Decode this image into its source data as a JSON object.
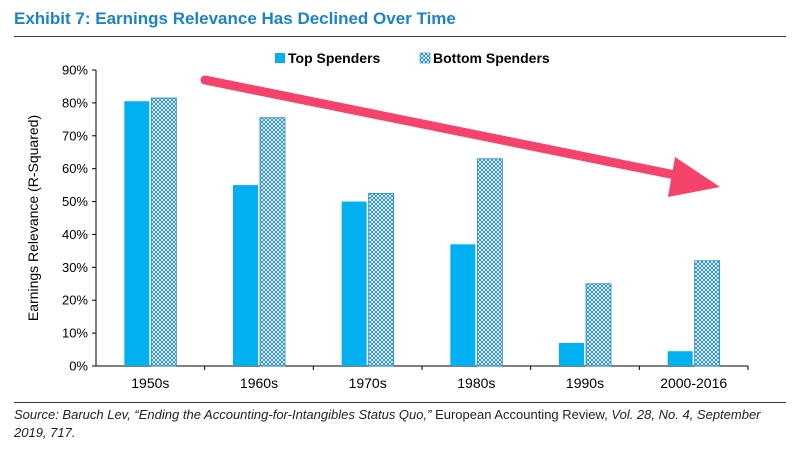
{
  "title": "Exhibit 7: Earnings Relevance Has Declined Over Time",
  "source": {
    "part1": "Source: Baruch Lev, “Ending the Accounting-for-Intangibles Status Quo,”",
    "part2": " European Accounting Review, ",
    "part3": "Vol. 28, No. 4, September 2019, 717."
  },
  "colors": {
    "title": "#1b84c6",
    "top_spenders": "#00b0f0",
    "bottom_spenders_pattern": "#1f87c8",
    "arrow": "#f5436c"
  },
  "chart_data": {
    "type": "bar",
    "ylabel": "Earnings Relevance (R-Squared)",
    "xlabel": "",
    "ylim": [
      0,
      90
    ],
    "yticks": [
      "0%",
      "10%",
      "20%",
      "30%",
      "40%",
      "50%",
      "60%",
      "70%",
      "80%",
      "90%"
    ],
    "categories": [
      "1950s",
      "1960s",
      "1970s",
      "1980s",
      "1990s",
      "2000-2016"
    ],
    "series": [
      {
        "name": "Top Spenders",
        "values": [
          80.5,
          55,
          50,
          37,
          7,
          4.5
        ]
      },
      {
        "name": "Bottom Spenders",
        "values": [
          81.5,
          75.5,
          52.5,
          63,
          25,
          32
        ]
      }
    ],
    "legend": "top-center",
    "grid": false,
    "annotation": "downward trend arrow"
  }
}
